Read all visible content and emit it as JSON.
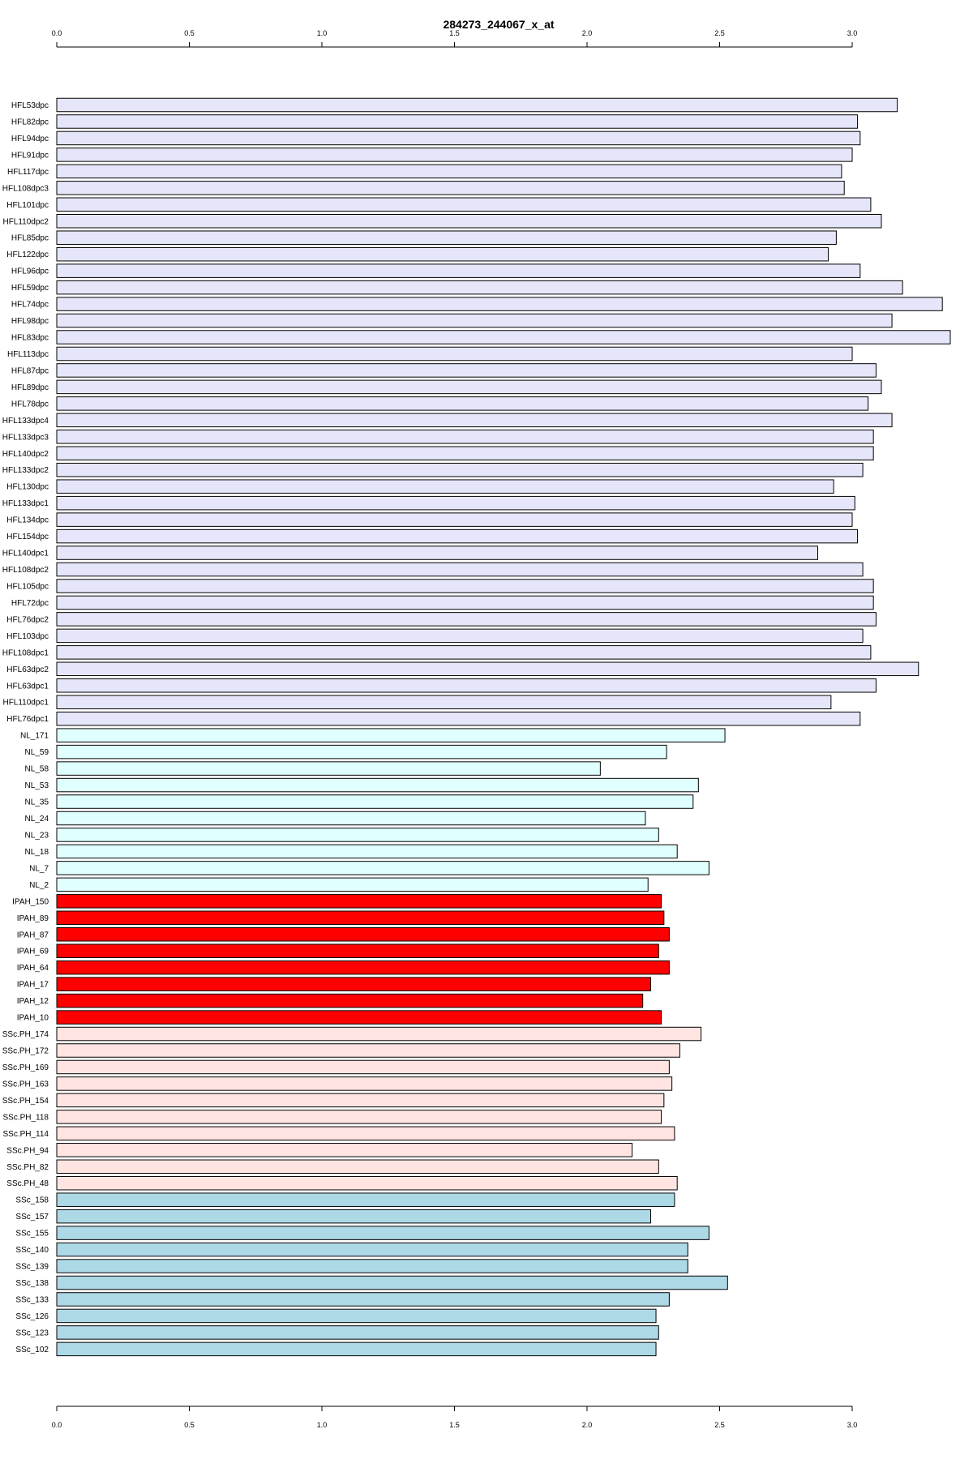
{
  "chart_data": {
    "type": "bar",
    "orientation": "horizontal",
    "title": "284273_244067_x_at",
    "xlabel": "",
    "ylabel": "",
    "xlim": [
      0,
      3.37
    ],
    "xticks": [
      "0.0",
      "0.5",
      "1.0",
      "1.5",
      "2.0",
      "2.5",
      "3.0"
    ],
    "xtick_values": [
      0,
      0.5,
      1.0,
      1.5,
      2.0,
      2.5,
      3.0
    ],
    "axes": [
      "top",
      "bottom"
    ],
    "grid": false,
    "legend": "none",
    "group_colors": {
      "HFL": "#e6e6fa",
      "NL": "#e0ffff",
      "IPAH": "#ff0000",
      "SScPH": "#ffe4e1",
      "SSc": "#add8e6"
    },
    "categories": [
      "HFL53dpc",
      "HFL82dpc",
      "HFL94dpc",
      "HFL91dpc",
      "HFL117dpc",
      "HFL108dpc3",
      "HFL101dpc",
      "HFL110dpc2",
      "HFL85dpc",
      "HFL122dpc",
      "HFL96dpc",
      "HFL59dpc",
      "HFL74dpc",
      "HFL98dpc",
      "HFL83dpc",
      "HFL113dpc",
      "HFL87dpc",
      "HFL89dpc",
      "HFL78dpc",
      "HFL133dpc4",
      "HFL133dpc3",
      "HFL140dpc2",
      "HFL133dpc2",
      "HFL130dpc",
      "HFL133dpc1",
      "HFL134dpc",
      "HFL154dpc",
      "HFL140dpc1",
      "HFL108dpc2",
      "HFL105dpc",
      "HFL72dpc",
      "HFL76dpc2",
      "HFL103dpc",
      "HFL108dpc1",
      "HFL63dpc2",
      "HFL63dpc1",
      "HFL110dpc1",
      "HFL76dpc1",
      "NL_171",
      "NL_59",
      "NL_58",
      "NL_53",
      "NL_35",
      "NL_24",
      "NL_23",
      "NL_18",
      "NL_7",
      "NL_2",
      "IPAH_150",
      "IPAH_89",
      "IPAH_87",
      "IPAH_69",
      "IPAH_64",
      "IPAH_17",
      "IPAH_12",
      "IPAH_10",
      "SSc.PH_174",
      "SSc.PH_172",
      "SSc.PH_169",
      "SSc.PH_163",
      "SSc.PH_154",
      "SSc.PH_118",
      "SSc.PH_114",
      "SSc.PH_94",
      "SSc.PH_82",
      "SSc.PH_48",
      "SSc_158",
      "SSc_157",
      "SSc_155",
      "SSc_140",
      "SSc_139",
      "SSc_138",
      "SSc_133",
      "SSc_126",
      "SSc_123",
      "SSc_102"
    ],
    "groups": [
      "HFL",
      "HFL",
      "HFL",
      "HFL",
      "HFL",
      "HFL",
      "HFL",
      "HFL",
      "HFL",
      "HFL",
      "HFL",
      "HFL",
      "HFL",
      "HFL",
      "HFL",
      "HFL",
      "HFL",
      "HFL",
      "HFL",
      "HFL",
      "HFL",
      "HFL",
      "HFL",
      "HFL",
      "HFL",
      "HFL",
      "HFL",
      "HFL",
      "HFL",
      "HFL",
      "HFL",
      "HFL",
      "HFL",
      "HFL",
      "HFL",
      "HFL",
      "HFL",
      "HFL",
      "NL",
      "NL",
      "NL",
      "NL",
      "NL",
      "NL",
      "NL",
      "NL",
      "NL",
      "NL",
      "IPAH",
      "IPAH",
      "IPAH",
      "IPAH",
      "IPAH",
      "IPAH",
      "IPAH",
      "IPAH",
      "SScPH",
      "SScPH",
      "SScPH",
      "SScPH",
      "SScPH",
      "SScPH",
      "SScPH",
      "SScPH",
      "SScPH",
      "SScPH",
      "SSc",
      "SSc",
      "SSc",
      "SSc",
      "SSc",
      "SSc",
      "SSc",
      "SSc",
      "SSc",
      "SSc"
    ],
    "values": [
      3.17,
      3.02,
      3.03,
      3.0,
      2.96,
      2.97,
      3.07,
      3.11,
      2.94,
      2.91,
      3.03,
      3.19,
      3.34,
      3.15,
      3.37,
      3.0,
      3.09,
      3.11,
      3.06,
      3.15,
      3.08,
      3.08,
      3.04,
      2.93,
      3.01,
      3.0,
      3.02,
      2.87,
      3.04,
      3.08,
      3.08,
      3.09,
      3.04,
      3.07,
      3.25,
      3.09,
      2.92,
      3.03,
      2.52,
      2.3,
      2.05,
      2.42,
      2.4,
      2.22,
      2.27,
      2.34,
      2.46,
      2.23,
      2.28,
      2.29,
      2.31,
      2.27,
      2.31,
      2.24,
      2.21,
      2.28,
      2.43,
      2.35,
      2.31,
      2.32,
      2.29,
      2.28,
      2.33,
      2.17,
      2.27,
      2.34,
      2.33,
      2.24,
      2.46,
      2.38,
      2.38,
      2.53,
      2.31,
      2.26,
      2.27,
      2.26
    ]
  }
}
